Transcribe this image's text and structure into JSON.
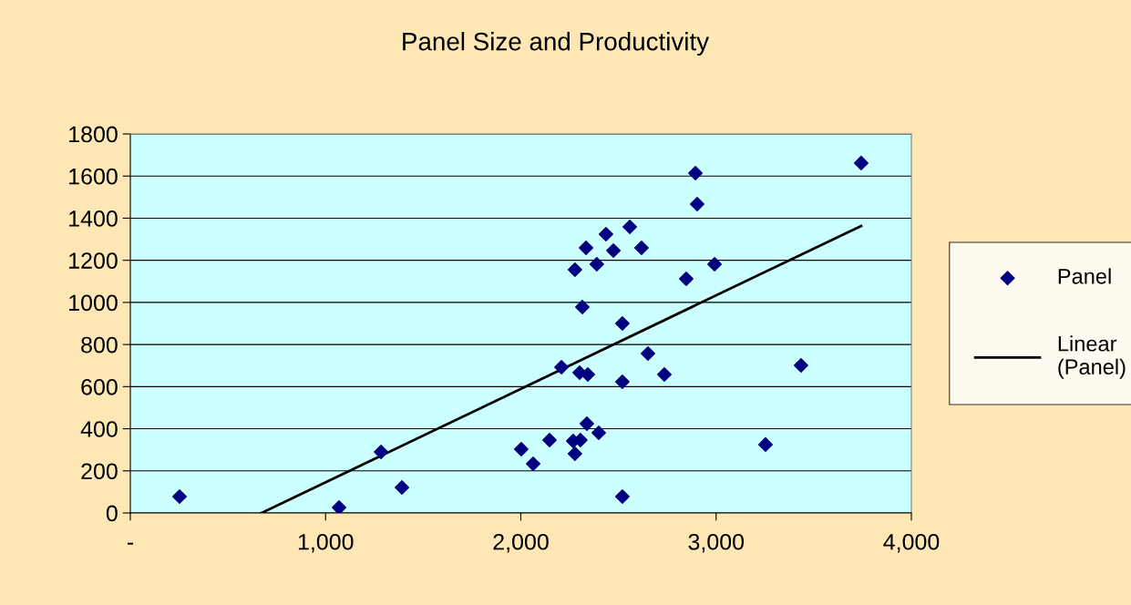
{
  "chart_data": {
    "type": "scatter",
    "title": "Panel Size and Productivity",
    "xlim": [
      0,
      4000
    ],
    "xticks": [
      {
        "value": 0,
        "label": "-"
      },
      {
        "value": 1000,
        "label": "1,000"
      },
      {
        "value": 2000,
        "label": "2,000"
      },
      {
        "value": 3000,
        "label": "3,000"
      },
      {
        "value": 4000,
        "label": "4,000"
      }
    ],
    "ylim": [
      0,
      1800
    ],
    "yticks": [
      0,
      200,
      400,
      600,
      800,
      1000,
      1200,
      1400,
      1600,
      1800
    ],
    "grid": "y",
    "legend": "right",
    "series": [
      {
        "name": "Panel",
        "marker": "diamond",
        "color": "#000080",
        "x": [
          252,
          1069,
          1284,
          1391,
          2002,
          2063,
          2147,
          2208,
          2268,
          2277,
          2277,
          2305,
          2301,
          2315,
          2334,
          2343,
          2338,
          2389,
          2399,
          2436,
          2474,
          2520,
          2520,
          2520,
          2558,
          2618,
          2651,
          2735,
          2847,
          2894,
          2903,
          2992,
          3253,
          3435,
          3743
        ],
        "values": [
          78,
          26,
          290,
          121,
          303,
          234,
          346,
          692,
          342,
          281,
          1155,
          346,
          666,
          978,
          1259,
          658,
          424,
          1181,
          381,
          1324,
          1246,
          900,
          623,
          78,
          1359,
          1259,
          757,
          658,
          1112,
          1614,
          1467,
          1181,
          325,
          701,
          1662
        ]
      },
      {
        "name": "Linear (Panel)",
        "type": "line",
        "line_style": "solid",
        "color": "#000000",
        "x": [
          672,
          3743
        ],
        "values": [
          0,
          1363
        ]
      }
    ]
  }
}
